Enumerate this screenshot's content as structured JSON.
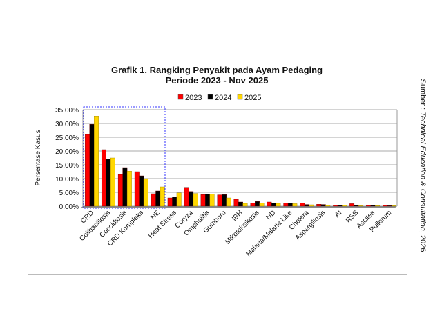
{
  "chart_data": {
    "type": "bar",
    "title": "Grafik 1. Rangking Penyakit pada Ayam Pedaging",
    "subtitle": "Periode 2023 - Nov 2025",
    "ylabel": "Persentase Kasus",
    "xlabel": "",
    "ylim": [
      0,
      35
    ],
    "yticks": [
      "0.00%",
      "5.00%",
      "10.00%",
      "15.00%",
      "20.00%",
      "25.00%",
      "30.00%",
      "35.00%"
    ],
    "grid": true,
    "legend": "top",
    "categories": [
      "CRD",
      "Colibacillosis",
      "Coccidiosis",
      "CRD Kompleks",
      "NE",
      "Heat Stress",
      "Coryza",
      "Omphalitis",
      "Gumboro",
      "IBH",
      "Mikotoksikosis",
      "ND",
      "Malaria/Malaria Like",
      "Cholera",
      "Aspergillosis",
      "AI",
      "RSS",
      "Ascites",
      "Pullorum"
    ],
    "series": [
      {
        "name": "2023",
        "color": "#ff0000",
        "values": [
          26.0,
          20.5,
          11.5,
          12.5,
          4.5,
          3.0,
          6.8,
          4.2,
          4.1,
          2.5,
          1.2,
          1.5,
          1.2,
          1.1,
          0.7,
          0.4,
          0.9,
          0.3,
          0.3
        ]
      },
      {
        "name": "2024",
        "color": "#000000",
        "values": [
          29.7,
          17.2,
          14.0,
          11.0,
          5.5,
          3.3,
          5.3,
          4.4,
          4.2,
          1.5,
          1.7,
          1.2,
          1.1,
          0.6,
          0.6,
          0.3,
          0.3,
          0.3,
          0.2
        ]
      },
      {
        "name": "2025",
        "color": "#ffd700",
        "values": [
          32.7,
          17.5,
          12.7,
          10.0,
          7.0,
          4.8,
          4.6,
          4.3,
          3.0,
          1.0,
          1.1,
          1.0,
          0.9,
          0.5,
          0.3,
          0.3,
          0.2,
          0.2,
          0.2
        ]
      }
    ]
  },
  "source": {
    "prefix": "Sumber : ",
    "italic": "Technical Education & Consultation",
    "suffix": ", 2026"
  }
}
